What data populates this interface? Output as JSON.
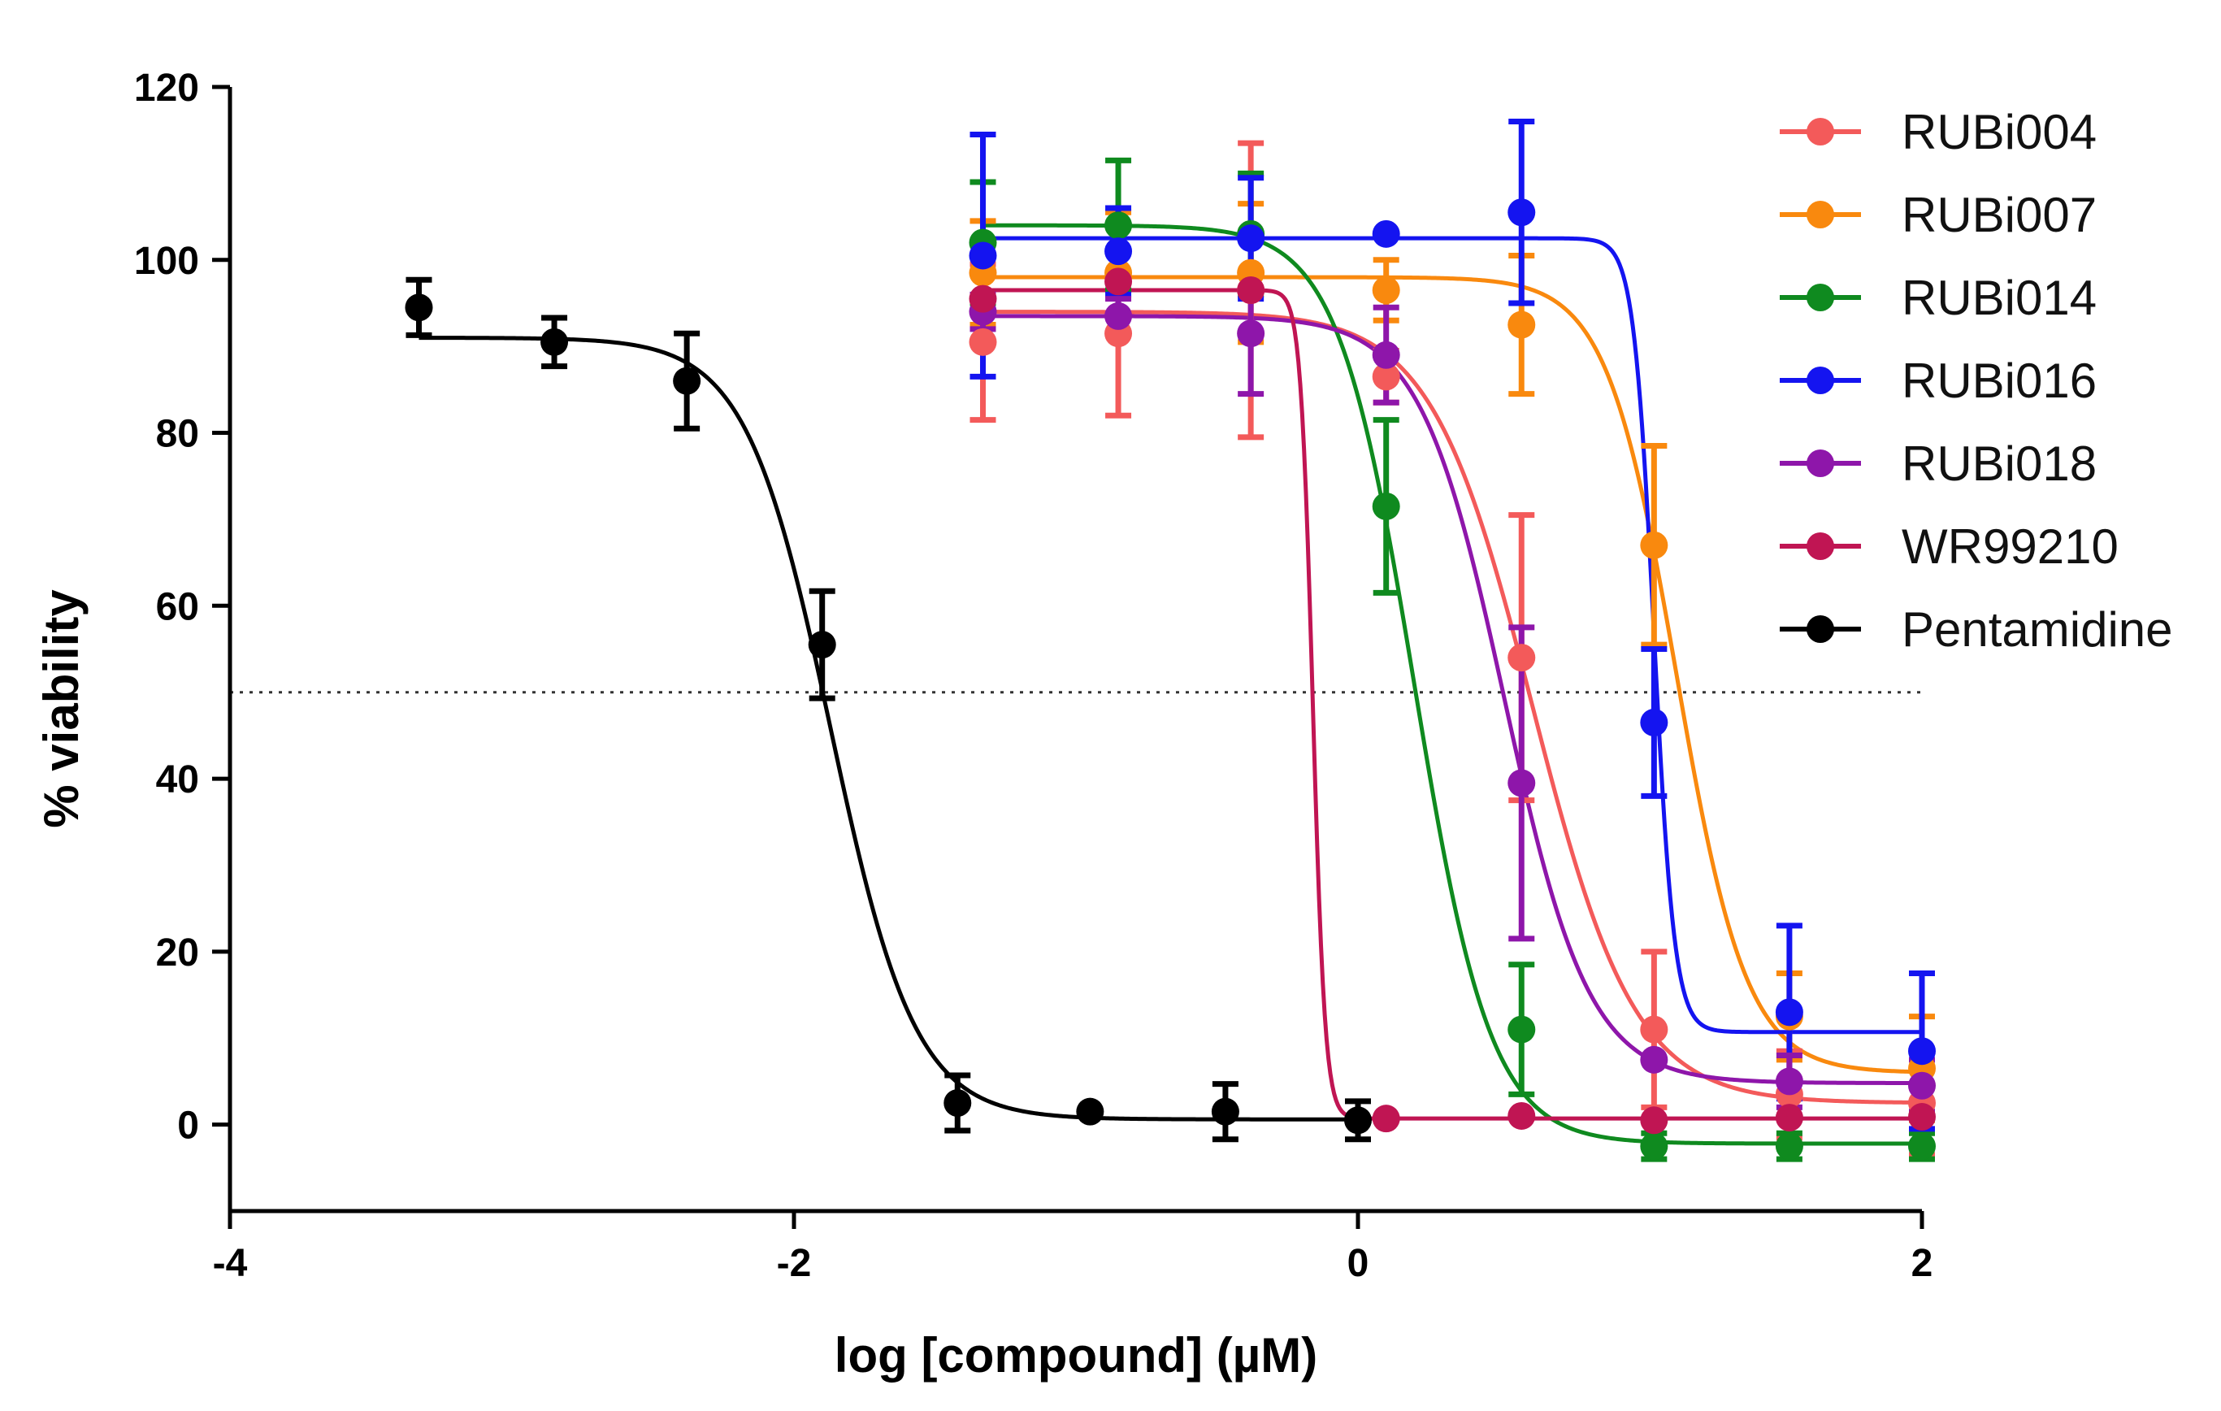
{
  "chart_data": {
    "type": "scatter",
    "title": "",
    "xlabel": "log [compound] (µM)",
    "ylabel": "% viability",
    "xlim": [
      -4,
      2
    ],
    "ylim": [
      -10,
      120
    ],
    "xticks": [
      -4,
      -2,
      0,
      2
    ],
    "yticks": [
      0,
      20,
      40,
      60,
      80,
      100,
      120
    ],
    "xtick_labels": [
      "-4",
      "-2",
      "0",
      "2"
    ],
    "ytick_labels": [
      "0",
      "20",
      "40",
      "60",
      "80",
      "100",
      "120"
    ],
    "reference_line": {
      "y": 50,
      "style": "dotted",
      "x_range": [
        -4,
        2
      ]
    },
    "legend_position": "top-right",
    "grid": false,
    "series": [
      {
        "name": "RUBi004",
        "color": "#F35A5A",
        "fit": {
          "top": 94,
          "bottom": 2.5,
          "log_ec50": 0.62,
          "hill": -2.4
        },
        "points": [
          {
            "x": -1.33,
            "y": 90.5,
            "err": 9
          },
          {
            "x": -0.85,
            "y": 91.5,
            "err": 9.5
          },
          {
            "x": -0.38,
            "y": 96.5,
            "err": 17
          },
          {
            "x": 0.1,
            "y": 86.5,
            "err": 3
          },
          {
            "x": 0.58,
            "y": 54,
            "err": 16.5
          },
          {
            "x": 1.05,
            "y": 11,
            "err": 9
          },
          {
            "x": 1.53,
            "y": 3.5,
            "err": 5
          },
          {
            "x": 2.0,
            "y": 2.5,
            "err": 6
          }
        ]
      },
      {
        "name": "RUBi007",
        "color": "#F9890E",
        "fit": {
          "top": 98,
          "bottom": 6,
          "log_ec50": 1.13,
          "hill": -3.5
        },
        "points": [
          {
            "x": -1.33,
            "y": 98.5,
            "err": 6
          },
          {
            "x": -0.85,
            "y": 98.5,
            "err": 7
          },
          {
            "x": -0.38,
            "y": 98.5,
            "err": 8
          },
          {
            "x": 0.1,
            "y": 96.5,
            "err": 3.5
          },
          {
            "x": 0.58,
            "y": 92.5,
            "err": 8
          },
          {
            "x": 1.05,
            "y": 67,
            "err": 11.5
          },
          {
            "x": 1.53,
            "y": 12.5,
            "err": 5
          },
          {
            "x": 2.0,
            "y": 6.5,
            "err": 6
          }
        ]
      },
      {
        "name": "RUBi014",
        "color": "#0F8A1F",
        "fit": {
          "top": 104,
          "bottom": -2.2,
          "log_ec50": 0.2,
          "hill": -3.2
        },
        "points": [
          {
            "x": -1.33,
            "y": 102,
            "err": 7
          },
          {
            "x": -0.85,
            "y": 104,
            "err": 7.5
          },
          {
            "x": -0.38,
            "y": 103,
            "err": 7
          },
          {
            "x": 0.1,
            "y": 71.5,
            "err": 10
          },
          {
            "x": 0.58,
            "y": 11,
            "err": 7.5
          },
          {
            "x": 1.05,
            "y": -2.5,
            "err": 1.5
          },
          {
            "x": 1.53,
            "y": -2.5,
            "err": 1.5
          },
          {
            "x": 2.0,
            "y": -2.5,
            "err": 1.5
          }
        ]
      },
      {
        "name": "RUBi016",
        "color": "#1414F0",
        "fit": {
          "top": 102.5,
          "bottom": 10.7,
          "log_ec50": 1.05,
          "hill": -12
        },
        "points": [
          {
            "x": -1.33,
            "y": 100.5,
            "err": 14
          },
          {
            "x": -0.85,
            "y": 101,
            "err": 5
          },
          {
            "x": -0.38,
            "y": 102.5,
            "err": 7
          },
          {
            "x": 0.1,
            "y": 103,
            "err": 0
          },
          {
            "x": 0.58,
            "y": 105.5,
            "err": 10.5
          },
          {
            "x": 1.05,
            "y": 46.5,
            "err": 8.5
          },
          {
            "x": 1.53,
            "y": 13,
            "err": 10
          },
          {
            "x": 2.0,
            "y": 8.5,
            "err": 9
          }
        ]
      },
      {
        "name": "RUBi018",
        "color": "#8E16AA",
        "fit": {
          "top": 93.5,
          "bottom": 4.8,
          "log_ec50": 0.52,
          "hill": -2.9
        },
        "points": [
          {
            "x": -1.33,
            "y": 94,
            "err": 2
          },
          {
            "x": -0.85,
            "y": 93.5,
            "err": 2
          },
          {
            "x": -0.38,
            "y": 91.5,
            "err": 7
          },
          {
            "x": 0.1,
            "y": 89,
            "err": 5.5
          },
          {
            "x": 0.58,
            "y": 39.5,
            "err": 18
          },
          {
            "x": 1.05,
            "y": 7.5,
            "err": 0
          },
          {
            "x": 1.53,
            "y": 5,
            "err": 3
          },
          {
            "x": 2.0,
            "y": 4.5,
            "err": 3
          }
        ]
      },
      {
        "name": "WR99210",
        "color": "#C01553",
        "fit": {
          "top": 96.5,
          "bottom": 0.7,
          "log_ec50": -0.16,
          "hill": -20
        },
        "points": [
          {
            "x": -1.33,
            "y": 95.5,
            "err": 0
          },
          {
            "x": -0.85,
            "y": 97.5,
            "err": 0
          },
          {
            "x": -0.38,
            "y": 96.5,
            "err": 0
          },
          {
            "x": 0.1,
            "y": 0.7,
            "err": 0
          },
          {
            "x": 0.58,
            "y": 1.0,
            "err": 0
          },
          {
            "x": 1.05,
            "y": 0.5,
            "err": 0
          },
          {
            "x": 1.53,
            "y": 0.8,
            "err": 0
          },
          {
            "x": 2.0,
            "y": 0.9,
            "err": 0
          }
        ]
      },
      {
        "name": "Pentamidine",
        "color": "#000000",
        "fit": {
          "top": 91,
          "bottom": 0.6,
          "log_ec50": -1.87,
          "hill": -2.9
        },
        "points": [
          {
            "x": -3.33,
            "y": 94.5,
            "err": 3.2
          },
          {
            "x": -2.85,
            "y": 90.5,
            "err": 2.8
          },
          {
            "x": -2.38,
            "y": 86,
            "err": 5.5
          },
          {
            "x": -1.9,
            "y": 55.5,
            "err": 6.2
          },
          {
            "x": -1.42,
            "y": 2.5,
            "err": 3.2
          },
          {
            "x": -0.95,
            "y": 1.5,
            "err": 0
          },
          {
            "x": -0.47,
            "y": 1.5,
            "err": 3.2
          },
          {
            "x": 0.0,
            "y": 0.5,
            "err": 2.2
          }
        ]
      }
    ]
  }
}
